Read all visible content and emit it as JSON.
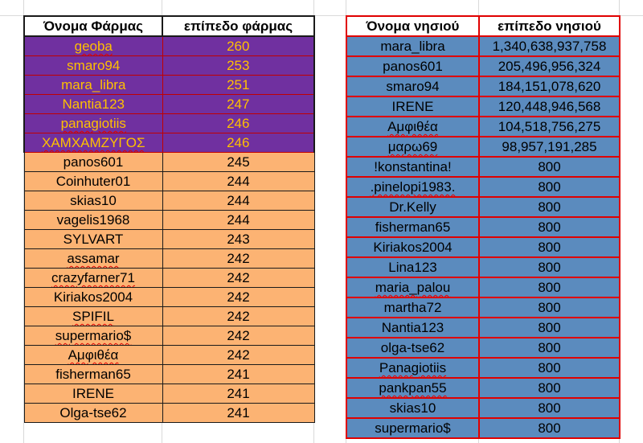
{
  "farm_table": {
    "headers": [
      "Όνομα Φάρμας",
      "επίπεδο φάρμας"
    ],
    "highlight_rows": 6,
    "rows": [
      [
        "geoba",
        "260"
      ],
      [
        "smaro94",
        "253"
      ],
      [
        "mara_libra",
        "251"
      ],
      [
        "Nantia123",
        "247"
      ],
      [
        "panagiotiis",
        "246"
      ],
      [
        "ΧΑΜΧΑΜΖΥΓΟΣ",
        "246"
      ],
      [
        "panos601",
        "245"
      ],
      [
        "Coinhuter01",
        "244"
      ],
      [
        "skias10",
        "244"
      ],
      [
        "vagelis1968",
        "244"
      ],
      [
        "SYLVART",
        "243"
      ],
      [
        "assamar",
        "242"
      ],
      [
        "crazyfarner71",
        "242"
      ],
      [
        "Kiriakos2004",
        "242"
      ],
      [
        "SPIFIL",
        "242"
      ],
      [
        "supermario$",
        "242"
      ],
      [
        "Αμφιθέα",
        "242"
      ],
      [
        "fisherman65",
        "241"
      ],
      [
        "IRENE",
        "241"
      ],
      [
        "Olga-tse62",
        "241"
      ]
    ]
  },
  "island_table": {
    "headers": [
      "Όνομα νησιού",
      "επίπεδο νησιού"
    ],
    "rows": [
      [
        "mara_libra",
        "1,340,638,937,758"
      ],
      [
        "panos601",
        "205,496,956,324"
      ],
      [
        "smaro94",
        "184,151,078,620"
      ],
      [
        "IRENE",
        "120,448,946,568"
      ],
      [
        "Αμφιθέα",
        "104,518,756,275"
      ],
      [
        "μαρω69",
        "98,957,191,285"
      ],
      [
        "!konstantina!",
        "800"
      ],
      [
        ".pinelopi1983.",
        "800"
      ],
      [
        "Dr.Kelly",
        "800"
      ],
      [
        "fisherman65",
        "800"
      ],
      [
        "Kiriakos2004",
        "800"
      ],
      [
        "Lina123",
        "800"
      ],
      [
        "maria_palou",
        "800"
      ],
      [
        "martha72",
        "800"
      ],
      [
        "Nantia123",
        "800"
      ],
      [
        "olga-tse62",
        "800"
      ],
      [
        "Panagiotiis",
        "800"
      ],
      [
        "pankpan55",
        "800"
      ],
      [
        "skias10",
        "800"
      ],
      [
        "supermario$",
        "800"
      ]
    ]
  },
  "colors": {
    "farm_highlight_bg": "#7030a0",
    "farm_highlight_text": "#ffc000",
    "farm_rest_bg": "#fcb373",
    "island_bg": "#5b8bbe",
    "island_border": "#e00000"
  }
}
